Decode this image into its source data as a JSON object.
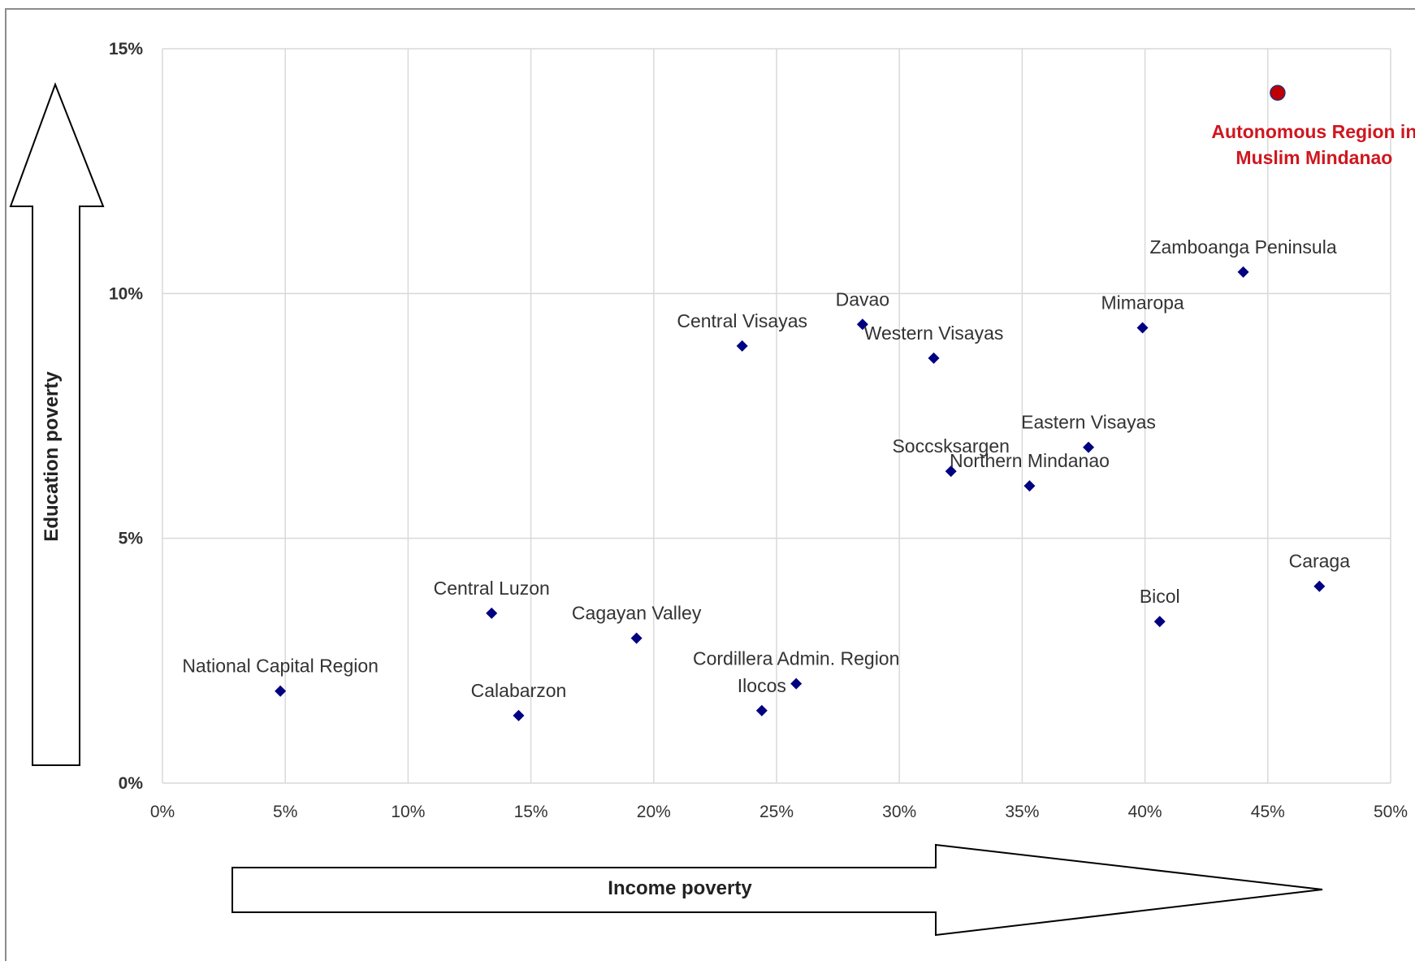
{
  "chart_data": {
    "type": "scatter",
    "title": "",
    "xlabel": "Income poverty",
    "ylabel": "Education poverty",
    "xlim": [
      0,
      0.5
    ],
    "ylim": [
      0,
      0.15
    ],
    "x_ticks": [
      "0%",
      "5%",
      "10%",
      "15%",
      "20%",
      "25%",
      "30%",
      "35%",
      "40%",
      "45%",
      "50%"
    ],
    "y_ticks": [
      "0%",
      "5%",
      "10%",
      "15%"
    ],
    "grid": true,
    "colors": {
      "points": "#000080",
      "highlight": "#c00000",
      "highlight_label": "#d0161e",
      "grid": "#d9d9d9"
    },
    "points": [
      {
        "label": "National Capital Region",
        "x": 0.048,
        "y": 0.0188
      },
      {
        "label": "Central Luzon",
        "x": 0.134,
        "y": 0.0347
      },
      {
        "label": "Calabarzon",
        "x": 0.145,
        "y": 0.0138
      },
      {
        "label": "Cagayan Valley",
        "x": 0.193,
        "y": 0.0296
      },
      {
        "label": "Ilocos",
        "x": 0.244,
        "y": 0.0148
      },
      {
        "label": "Cordillera Admin. Region",
        "x": 0.258,
        "y": 0.0203
      },
      {
        "label": "Central Visayas",
        "x": 0.236,
        "y": 0.0893
      },
      {
        "label": "Davao",
        "x": 0.285,
        "y": 0.0937
      },
      {
        "label": "Western Visayas",
        "x": 0.314,
        "y": 0.0868
      },
      {
        "label": "Soccsksargen",
        "x": 0.321,
        "y": 0.0637
      },
      {
        "label": "Northern Mindanao",
        "x": 0.353,
        "y": 0.0607
      },
      {
        "label": "Eastern Visayas",
        "x": 0.377,
        "y": 0.0686
      },
      {
        "label": "Mimaropa",
        "x": 0.399,
        "y": 0.093
      },
      {
        "label": "Bicol",
        "x": 0.406,
        "y": 0.033
      },
      {
        "label": "Zamboanga Peninsula",
        "x": 0.44,
        "y": 0.1044
      },
      {
        "label": "Caraga",
        "x": 0.471,
        "y": 0.0402
      }
    ],
    "highlight": {
      "label_lines": [
        "Autonomous Region in",
        "Muslim Mindanao"
      ],
      "x": 0.454,
      "y": 0.141
    }
  }
}
